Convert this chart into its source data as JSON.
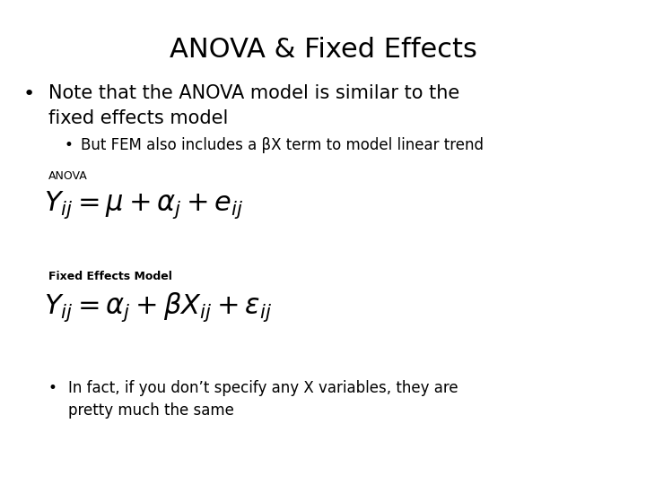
{
  "title": "ANOVA & Fixed Effects",
  "title_fontsize": 22,
  "title_color": "#000000",
  "bg_color": "#ffffff",
  "bullet1_line1": "Note that the ANOVA model is similar to the",
  "bullet1_line2": "fixed effects model",
  "bullet1_fontsize": 15,
  "bullet2": "But FEM also includes a βX term to model linear trend",
  "bullet2_fontsize": 12,
  "label_anova": "ANOVA",
  "label_anova_fontsize": 9,
  "formula_anova": "$Y_{ij} = \\mu + \\alpha_j + e_{ij}$",
  "formula_anova_fontsize": 22,
  "label_fem": "Fixed Effects Model",
  "label_fem_fontsize": 9,
  "formula_fem": "$Y_{ij} = \\alpha_j + \\beta X_{ij} + \\varepsilon_{ij}$",
  "formula_fem_fontsize": 22,
  "bullet3_line1": "In fact, if you don’t specify any X variables, they are",
  "bullet3_line2": "pretty much the same",
  "bullet3_fontsize": 12,
  "text_color": "#000000"
}
